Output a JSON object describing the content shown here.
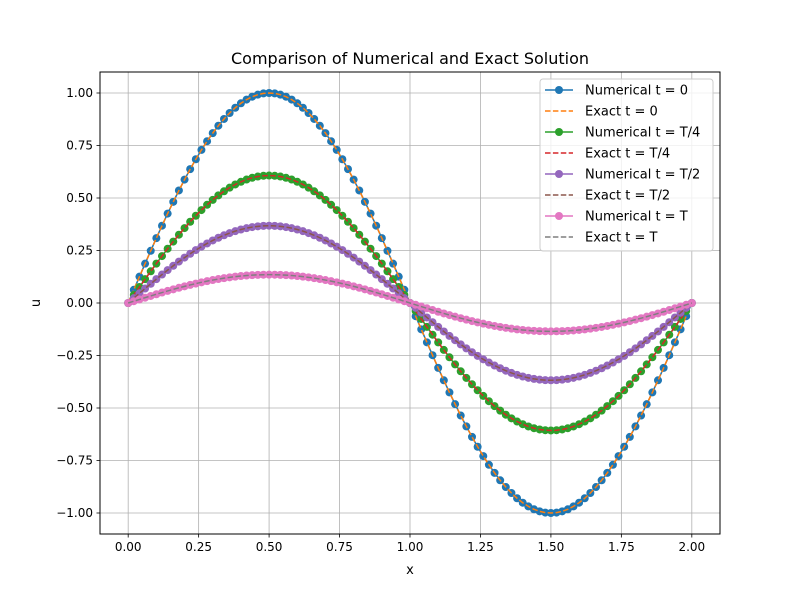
{
  "chart_data": {
    "type": "line",
    "title": "Comparison of Numerical and Exact Solution",
    "xlabel": "x",
    "ylabel": "u",
    "xlim": [
      -0.1,
      2.1
    ],
    "ylim": [
      -1.1,
      1.1
    ],
    "x_ticks": [
      0.0,
      0.25,
      0.5,
      0.75,
      1.0,
      1.25,
      1.5,
      1.75,
      2.0
    ],
    "x_tick_labels": [
      "0.00",
      "0.25",
      "0.50",
      "0.75",
      "1.00",
      "1.25",
      "1.50",
      "1.75",
      "2.00"
    ],
    "y_ticks": [
      -1.0,
      -0.75,
      -0.5,
      -0.25,
      0.0,
      0.25,
      0.5,
      0.75,
      1.0
    ],
    "y_tick_labels": [
      "−1.00",
      "−0.75",
      "−0.50",
      "−0.25",
      "0.00",
      "0.25",
      "0.50",
      "0.75",
      "1.00"
    ],
    "grid": true,
    "legend_position": "top-right",
    "curve": "u = A * sin(pi * x)",
    "x_start": 0.0,
    "x_end": 2.0,
    "num_points": 101,
    "series": [
      {
        "name": "Numerical t = 0",
        "amplitude": 1.0,
        "style": "line-marker",
        "color": "#1f77b4"
      },
      {
        "name": "Exact t = 0",
        "amplitude": 1.0,
        "style": "dashed",
        "color": "#ff7f0e"
      },
      {
        "name": "Numerical t = T/4",
        "amplitude": 0.607,
        "style": "line-marker",
        "color": "#2ca02c"
      },
      {
        "name": "Exact t = T/4",
        "amplitude": 0.607,
        "style": "dashed",
        "color": "#d62728"
      },
      {
        "name": "Numerical t = T/2",
        "amplitude": 0.368,
        "style": "line-marker",
        "color": "#9467bd"
      },
      {
        "name": "Exact t = T/2",
        "amplitude": 0.368,
        "style": "dashed",
        "color": "#8c564b"
      },
      {
        "name": "Numerical t = T",
        "amplitude": 0.135,
        "style": "line-marker",
        "color": "#e377c2"
      },
      {
        "name": "Exact t = T",
        "amplitude": 0.135,
        "style": "dashed",
        "color": "#7f7f7f"
      }
    ]
  }
}
